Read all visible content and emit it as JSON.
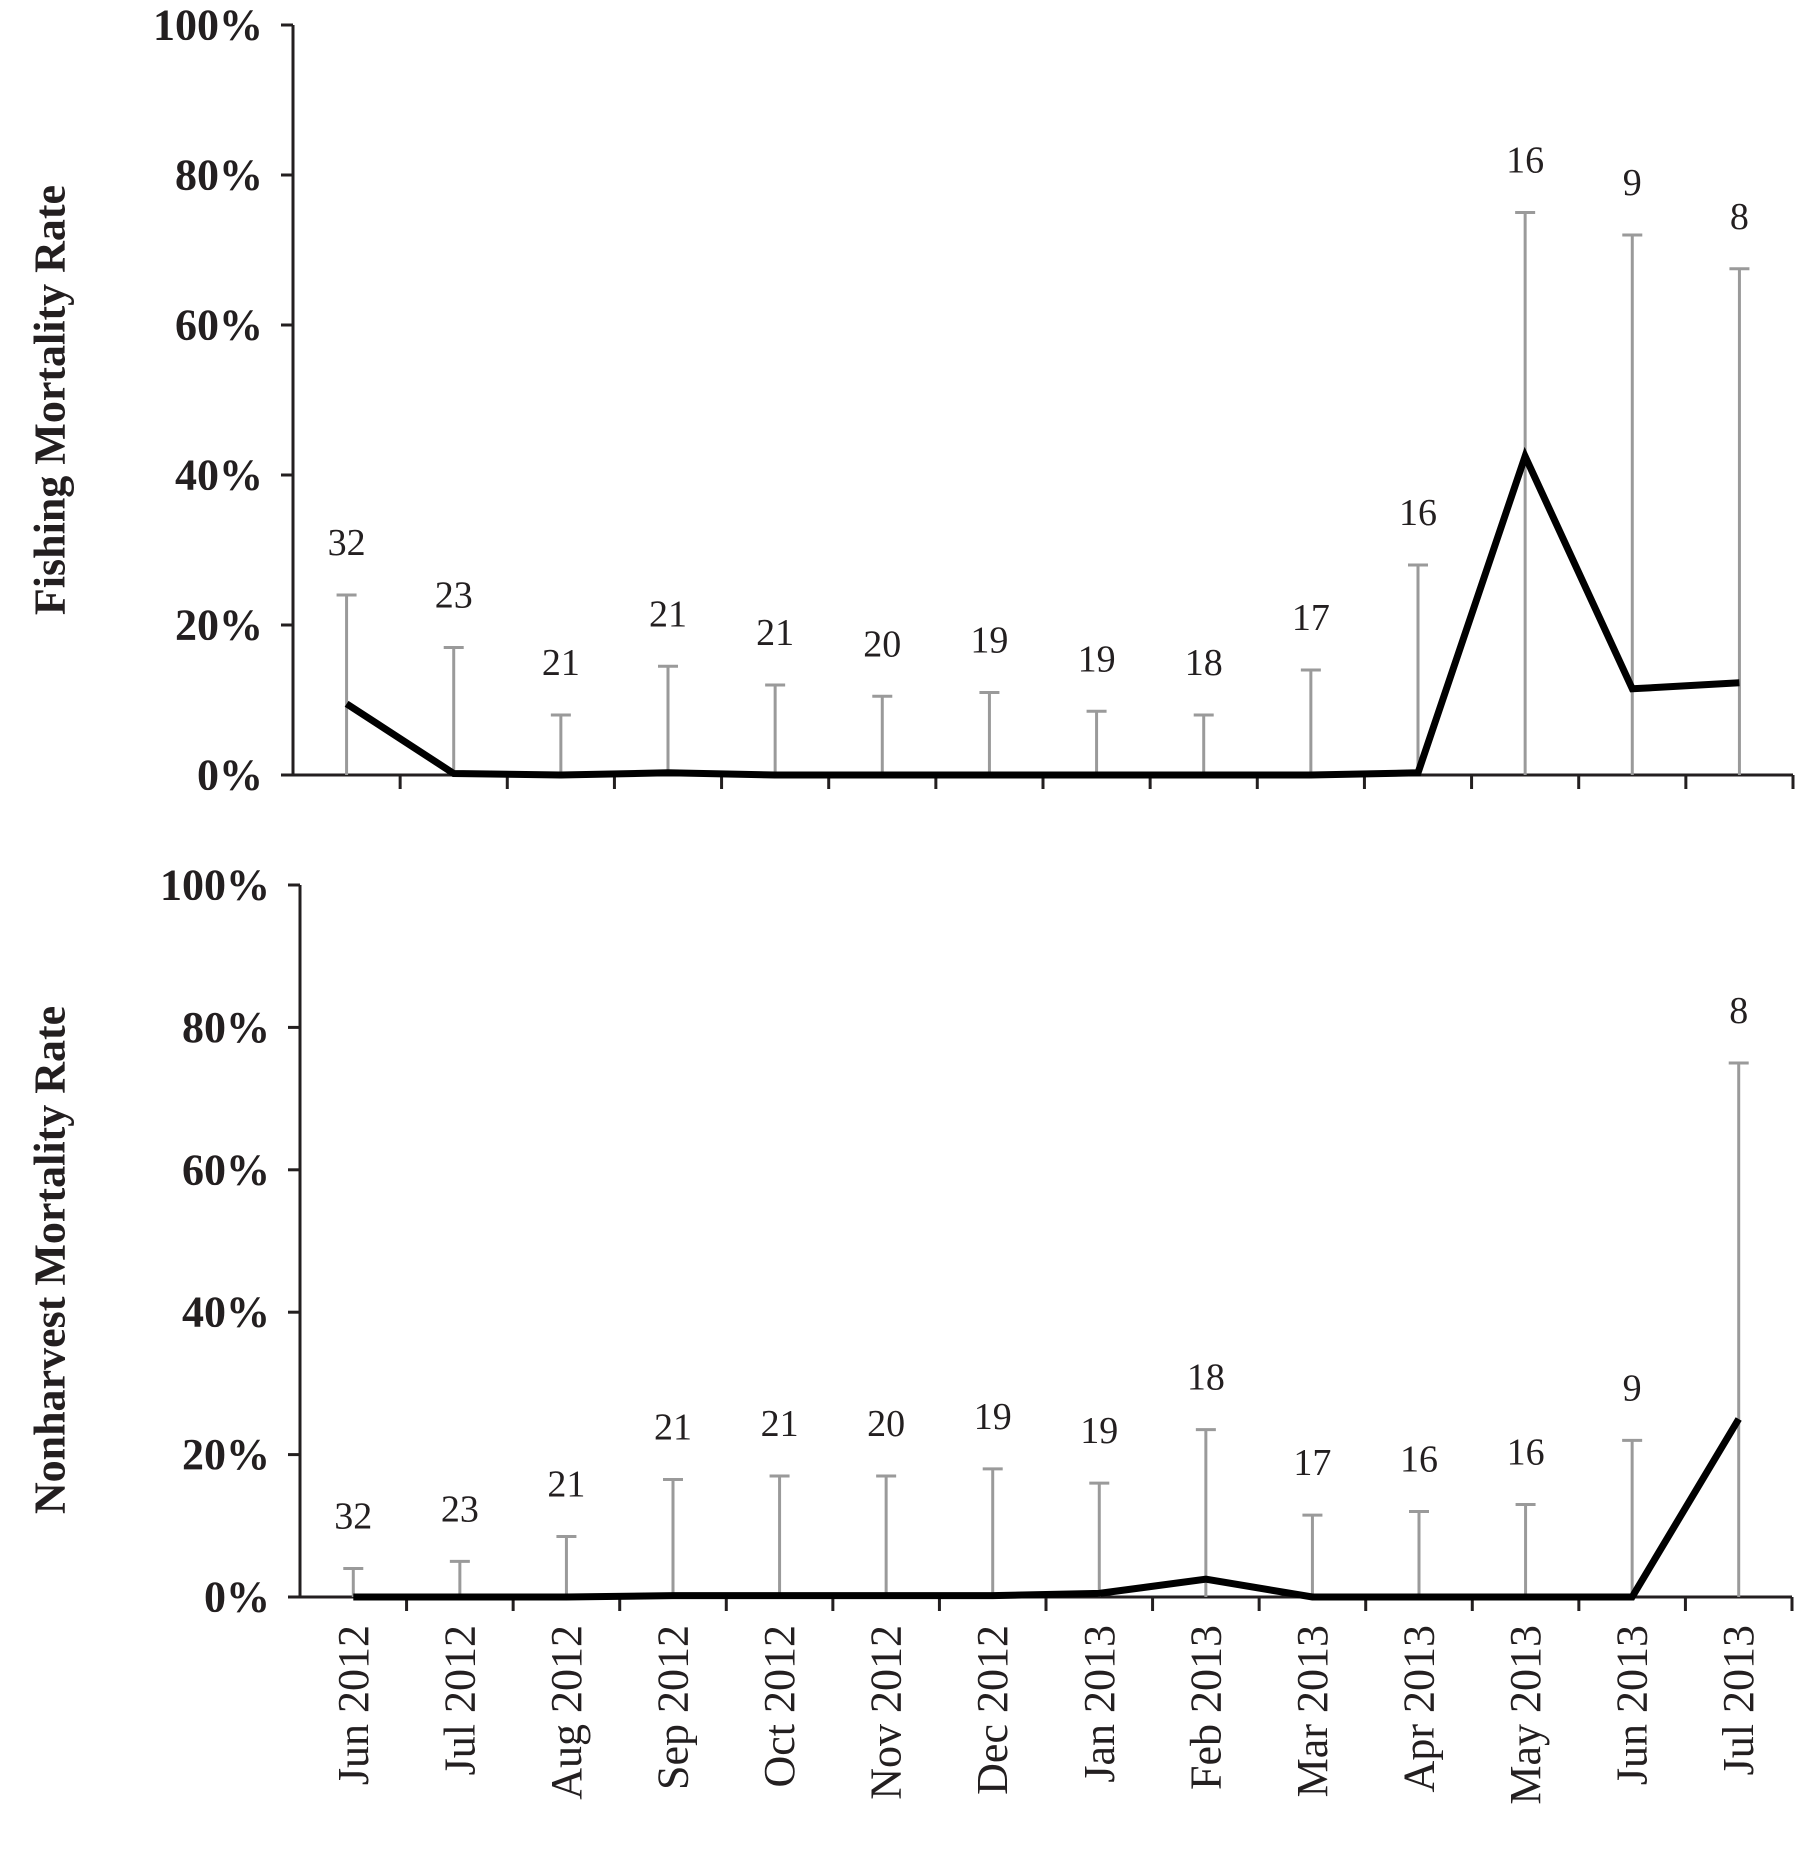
{
  "chart_data": {
    "type": "line",
    "categories": [
      "Jun 2012",
      "Jul 2012",
      "Aug 2012",
      "Sep 2012",
      "Oct 2012",
      "Nov 2012",
      "Dec 2012",
      "Jan 2013",
      "Feb 2013",
      "Mar 2013",
      "Apr 2013",
      "May 2013",
      "Jun 2013",
      "Jul 2013"
    ],
    "ylim": [
      0,
      100
    ],
    "yticks": [
      "0%",
      "20%",
      "40%",
      "60%",
      "80%",
      "100%"
    ],
    "grid": false,
    "panels": [
      {
        "ylabel": "Fishing Mortality Rate",
        "values": [
          9.5,
          0.2,
          0,
          0.3,
          0,
          0,
          0,
          0,
          0,
          0,
          0.3,
          42.5,
          11.5,
          12.3
        ],
        "upper": [
          24,
          17,
          8,
          14.5,
          12,
          10.5,
          11,
          8.5,
          8,
          14,
          28,
          75,
          72,
          67.5
        ],
        "n": [
          "32",
          "23",
          "21",
          "21",
          "21",
          "20",
          "19",
          "19",
          "18",
          "17",
          "16",
          "16",
          "9",
          "8"
        ]
      },
      {
        "ylabel": "Nonharvest Mortality Rate",
        "values": [
          0,
          0,
          0,
          0.2,
          0.2,
          0.2,
          0.2,
          0.5,
          2.5,
          0,
          0,
          0,
          0,
          25
        ],
        "upper": [
          4,
          5,
          8.5,
          16.5,
          17,
          17,
          18,
          16,
          23.5,
          11.5,
          12,
          13,
          22,
          75
        ],
        "n": [
          "32",
          "23",
          "21",
          "21",
          "21",
          "20",
          "19",
          "19",
          "18",
          "17",
          "16",
          "16",
          "9",
          "8"
        ]
      }
    ]
  }
}
